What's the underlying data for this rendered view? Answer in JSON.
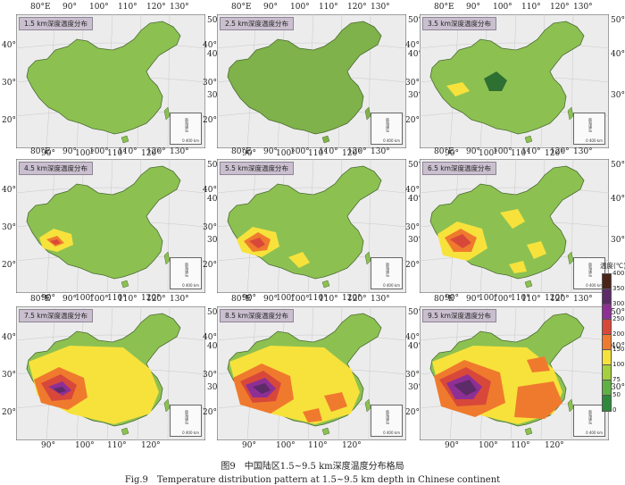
{
  "panels": [
    {
      "label": "1.5 km深度温度分布",
      "show_top_lon": true
    },
    {
      "label": "2.5 km深度温度分布",
      "show_top_lon": true
    },
    {
      "label": "3.5 km深度温度分布",
      "show_top_lon": true
    },
    {
      "label": "4.5 km深度温度分布",
      "show_top_lon": true
    },
    {
      "label": "5.5 km深度温度分布",
      "show_top_lon": true
    },
    {
      "label": "6.5 km深度温度分布",
      "show_top_lon": true
    },
    {
      "label": "7.5 km深度温度分布",
      "show_top_lon": true
    },
    {
      "label": "8.5 km深度温度分布",
      "show_top_lon": true
    },
    {
      "label": "9.5 km深度温度分布",
      "show_top_lon": true
    }
  ],
  "top_longitudes": [
    "80°E",
    "90°",
    "100°",
    "110°",
    "120°",
    "130°"
  ],
  "bottom_longitudes": [
    "90°",
    "100°",
    "110°",
    "120°"
  ],
  "left_latitudes": [
    "40°",
    "30°",
    "20°"
  ],
  "right_latitudes": [
    "50°N",
    "40°",
    "30°"
  ],
  "inset": {
    "text": "南海诸岛",
    "scale": "0 400 km"
  },
  "legend": {
    "title": "温度(℃)",
    "ticks": [
      "400",
      "350",
      "300",
      "250",
      "200",
      "150",
      "100",
      "75",
      "50",
      "0"
    ],
    "colors": [
      "#4a2418",
      "#5c2b68",
      "#8e2f95",
      "#d8483a",
      "#ef7a2e",
      "#f7e23b",
      "#a6cf3e",
      "#5fb045",
      "#2e8a3a"
    ]
  },
  "caption_cn": "图9　中国陆区1.5~9.5 km深度温度分布格局",
  "caption_en": "Fig.9　Temperature distribution pattern at 1.5~9.5 km depth in Chinese continent"
}
